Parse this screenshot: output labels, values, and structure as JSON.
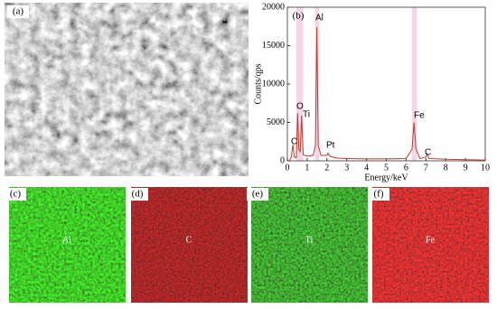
{
  "sem_panel": {
    "label": "(a)"
  },
  "chart_data": {
    "type": "line",
    "panel_label": "(b)",
    "x_label": "Energy/keV",
    "y_label": "Counts/qps",
    "x": [
      0.1,
      0.2,
      0.28,
      0.35,
      0.45,
      0.52,
      0.58,
      0.65,
      0.72,
      0.8,
      1.0,
      1.3,
      1.42,
      1.49,
      1.56,
      1.7,
      2.0,
      2.05,
      2.15,
      2.5,
      3,
      4,
      5,
      6.0,
      6.3,
      6.4,
      6.5,
      6.7,
      7.0,
      7.06,
      7.15,
      8,
      9,
      10
    ],
    "values": [
      0,
      500,
      2100,
      500,
      400,
      6200,
      1500,
      1200,
      5900,
      800,
      600,
      700,
      2000,
      17400,
      2000,
      700,
      700,
      1000,
      600,
      350,
      300,
      250,
      250,
      300,
      1500,
      5000,
      1500,
      300,
      500,
      900,
      300,
      200,
      150,
      100
    ],
    "color": "#c0392b",
    "annotations": [
      "C",
      "O",
      "Ti",
      "Al",
      "Pt",
      "Fe",
      "C"
    ],
    "xlim": [
      0,
      10
    ],
    "xticks": [
      0,
      1,
      2,
      3,
      4,
      5,
      6,
      7,
      8,
      9,
      10
    ],
    "ylim": [
      0,
      20000
    ],
    "yticks": [
      0,
      5000,
      10000,
      15000,
      20000
    ]
  },
  "maps": [
    {
      "label": "(c)",
      "element": "Al"
    },
    {
      "label": "(d)",
      "element": "C"
    },
    {
      "label": "(e)",
      "element": "Ti"
    },
    {
      "label": "(f)",
      "element": "Fe"
    }
  ]
}
